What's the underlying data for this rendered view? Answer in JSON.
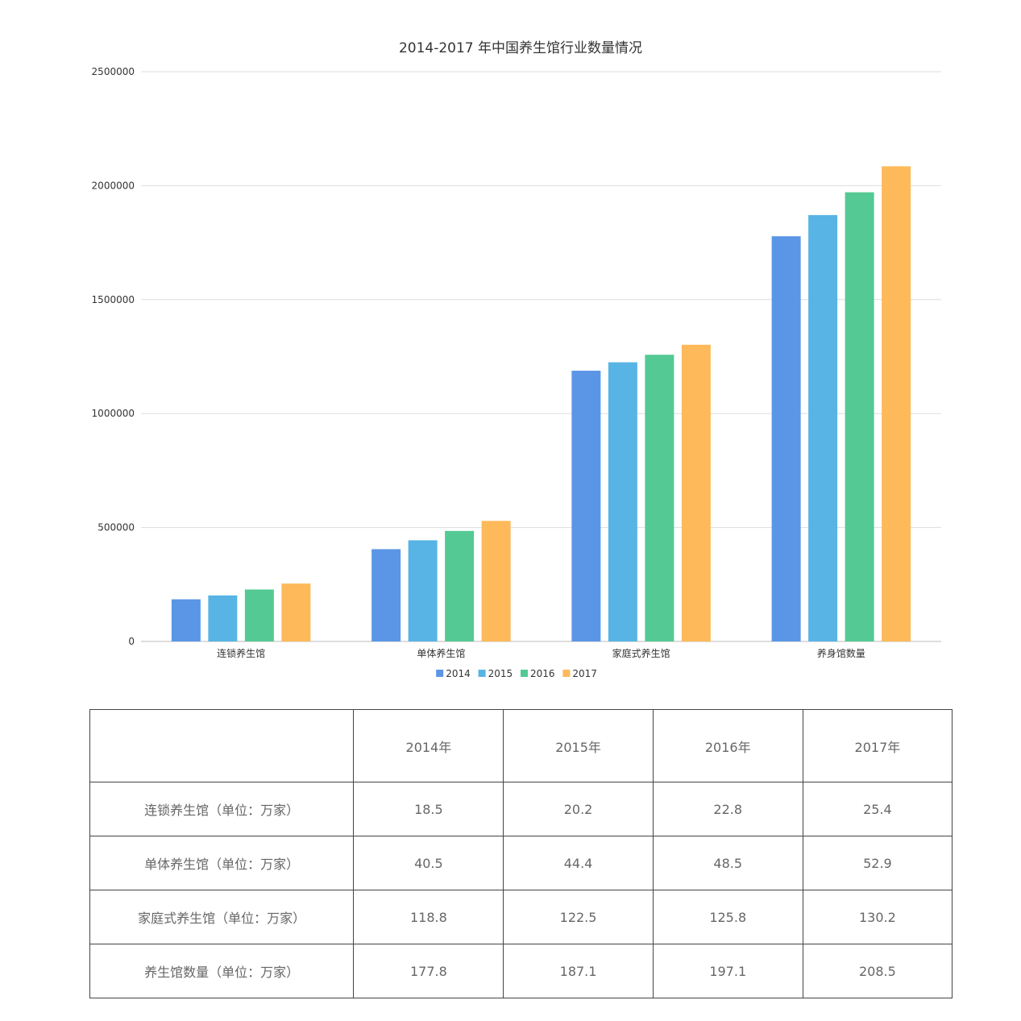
{
  "chart_data": {
    "type": "bar",
    "title": "2014-2017 年中国养生馆行业数量情况",
    "categories": [
      "连锁养生馆",
      "单体养生馆",
      "家庭式养生馆",
      "养身馆数量"
    ],
    "series": [
      {
        "name": "2014",
        "color": "#5b96e6",
        "values": [
          185000,
          405000,
          1188000,
          1778000
        ]
      },
      {
        "name": "2015",
        "color": "#58b4e4",
        "values": [
          202000,
          444000,
          1225000,
          1871000
        ]
      },
      {
        "name": "2016",
        "color": "#54c994",
        "values": [
          228000,
          485000,
          1258000,
          1971000
        ]
      },
      {
        "name": "2017",
        "color": "#fdb95a",
        "values": [
          254000,
          529000,
          1302000,
          2085000
        ]
      }
    ],
    "y_ticks": [
      "0",
      "500000",
      "1000000",
      "1500000",
      "2000000",
      "2500000"
    ],
    "ylim": [
      0,
      2500000
    ],
    "grid": true,
    "legend_position": "bottom"
  },
  "table": {
    "headers": [
      "",
      "2014年",
      "2015年",
      "2016年",
      "2017年"
    ],
    "rows": [
      {
        "label": "连锁养生馆（单位：万家）",
        "values": [
          "18.5",
          "20.2",
          "22.8",
          "25.4"
        ]
      },
      {
        "label": "单体养生馆（单位：万家）",
        "values": [
          "40.5",
          "44.4",
          "48.5",
          "52.9"
        ]
      },
      {
        "label": "家庭式养生馆（单位：万家）",
        "values": [
          "118.8",
          "122.5",
          "125.8",
          "130.2"
        ]
      },
      {
        "label": "养生馆数量（单位：万家）",
        "values": [
          "177.8",
          "187.1",
          "197.1",
          "208.5"
        ]
      }
    ]
  }
}
